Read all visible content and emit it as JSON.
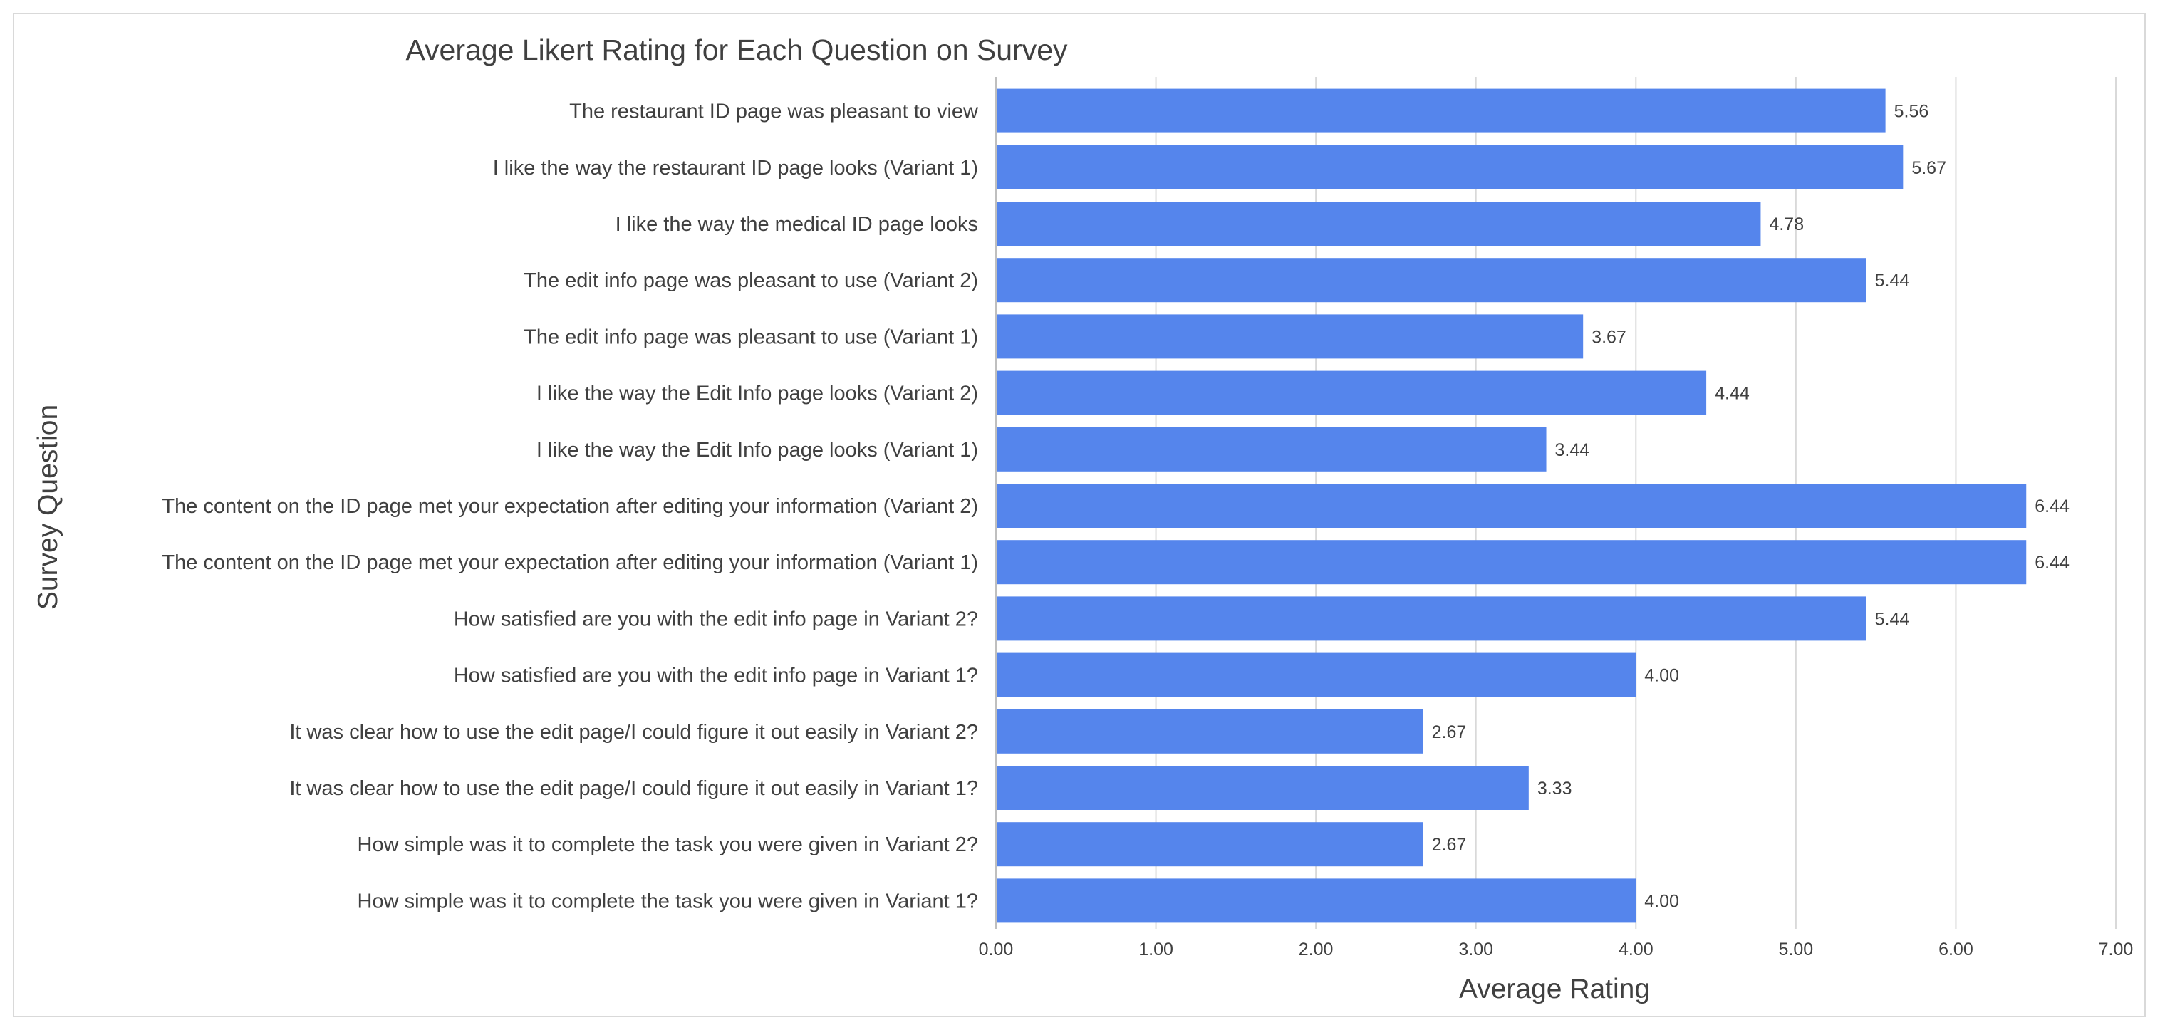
{
  "chart_data": {
    "type": "bar",
    "orientation": "horizontal",
    "title": "Average Likert Rating for Each Question on Survey",
    "xlabel": "Average Rating",
    "ylabel": "Survey Question",
    "xlim": [
      0,
      7
    ],
    "x_ticks": [
      "0.00",
      "1.00",
      "2.00",
      "3.00",
      "4.00",
      "5.00",
      "6.00",
      "7.00"
    ],
    "grid": "vertical",
    "legend": "none",
    "bar_color": "#5585ec",
    "categories": [
      "The restaurant ID page was pleasant to view",
      "I like the way the restaurant ID page looks (Variant 1)",
      "I like the way the medical ID page looks",
      "The edit info page was pleasant to use (Variant 2)",
      "The edit info page was pleasant to use (Variant 1)",
      "I like the way the Edit Info page looks (Variant 2)",
      "I like the way the Edit Info page looks (Variant 1)",
      "The content on the ID page met your expectation after editing your information (Variant 2)",
      "The content on the ID page met your expectation after editing your information (Variant 1)",
      "How satisfied are you with the edit info page in Variant 2?",
      "How satisfied are you with the edit info page in Variant 1?",
      "It was clear how to use the edit page/I could figure it out easily in Variant 2?",
      "It was clear how to use the edit page/I could figure it out easily in Variant 1?",
      "How simple was it to complete the task you were given in Variant 2?",
      "How simple was it to complete the task you were given in Variant 1?"
    ],
    "values": [
      5.56,
      5.67,
      4.78,
      5.44,
      3.67,
      4.44,
      3.44,
      6.44,
      6.44,
      5.44,
      4.0,
      2.67,
      3.33,
      2.67,
      4.0
    ],
    "value_labels": [
      "5.56",
      "5.67",
      "4.78",
      "5.44",
      "3.67",
      "4.44",
      "3.44",
      "6.44",
      "6.44",
      "5.44",
      "4.00",
      "2.67",
      "3.33",
      "2.67",
      "4.00"
    ]
  }
}
